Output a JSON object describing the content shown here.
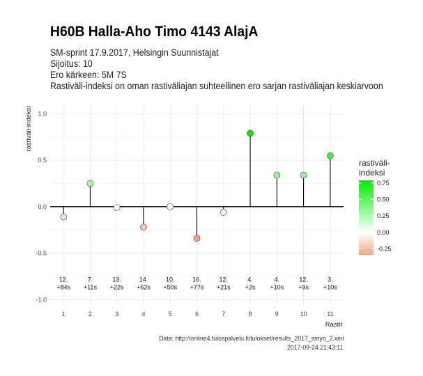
{
  "header": {
    "title": "H60B Halla-Aho Timo 4143 AlajA",
    "subtitle_lines": [
      "SM-sprint 17.9.2017, Helsingin Suunnistajat",
      "Sijoitus: 10",
      "Ero kärkeen: 5M 7S",
      "Rastiväli-indeksi on oman rastiväliajan suhteellinen ero sarjan rastiväliajan keskiarvoon"
    ]
  },
  "caption": {
    "line1": "Data: http://online4.tulospalvelu.fi/tulokset/results_2017_smyo_2.xml",
    "line2": "2017-09-24 21:43:11"
  },
  "chart_data": {
    "type": "lollipop",
    "xlabel": "Rastit",
    "ylabel": "rastiväli-indeksi",
    "ylim": [
      -1.05,
      1.1
    ],
    "yticks": [
      -1.0,
      -0.5,
      0.0,
      0.5,
      1.0
    ],
    "ytick_labels": [
      "-1.0",
      "-0.5",
      "0.0",
      "0.5",
      "1.0"
    ],
    "x": [
      1,
      2,
      3,
      4,
      5,
      6,
      7,
      8,
      9,
      10,
      11
    ],
    "values": [
      -0.11,
      0.25,
      -0.01,
      -0.22,
      0.0,
      -0.34,
      -0.06,
      0.79,
      0.34,
      0.34,
      0.55
    ],
    "annotations": [
      [
        "12.",
        "+84s"
      ],
      [
        "7.",
        "+11s"
      ],
      [
        "13.",
        "+22s"
      ],
      [
        "14.",
        "+62s"
      ],
      [
        "10.",
        "+50s"
      ],
      [
        "16.",
        "+77s"
      ],
      [
        "12.",
        "+21s"
      ],
      [
        "4.",
        "+2s"
      ],
      [
        "4.",
        "+10s"
      ],
      [
        "12.",
        "+9s"
      ],
      [
        "3.",
        "+10s"
      ]
    ],
    "annotation_y": -0.85,
    "legend": {
      "title_lines": [
        "rastiväli-",
        "indeksi"
      ],
      "ticks": [
        0.75,
        0.5,
        0.25,
        0.0,
        -0.25
      ],
      "tick_labels": [
        "0.75",
        "0.50",
        "0.25",
        "0.00",
        "-0.25"
      ],
      "range": [
        -0.34,
        0.79
      ],
      "low_color": "#f4a582",
      "mid_color": "#ffffff",
      "high_color": "#00ee00"
    },
    "grid": true,
    "panel_background": "#ffffff",
    "grid_color": "#e6e6e6"
  }
}
